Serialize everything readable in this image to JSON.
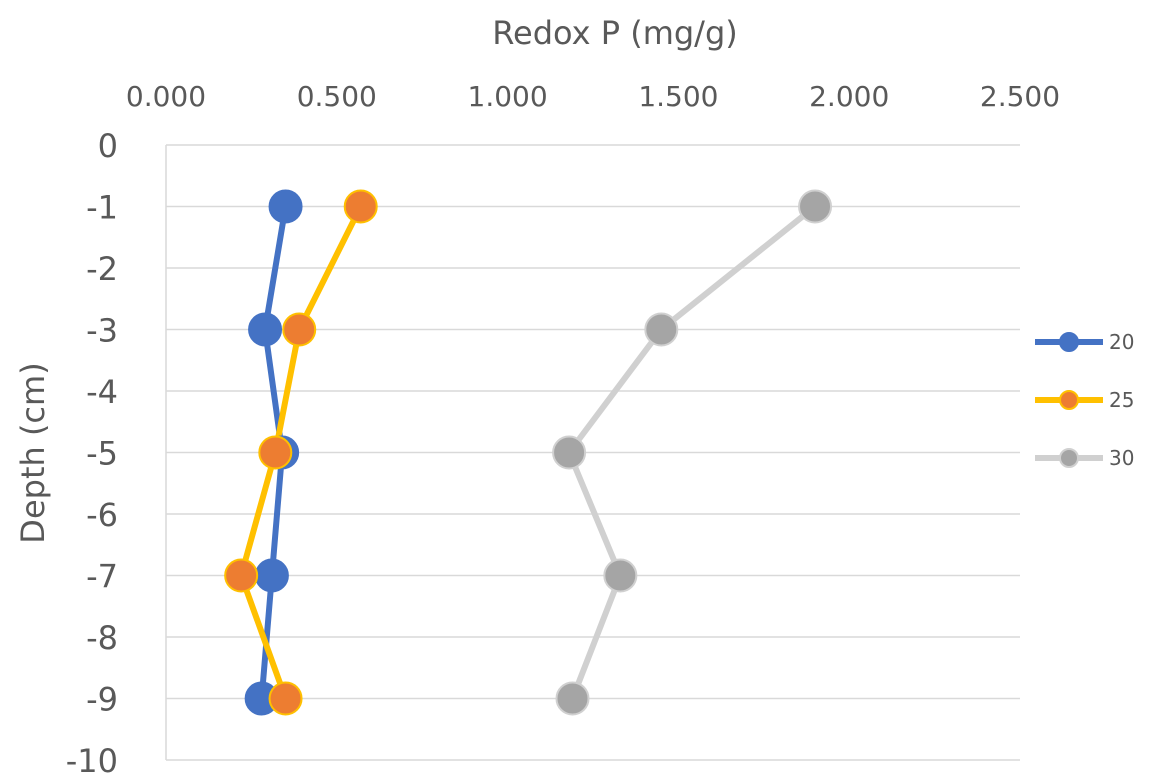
{
  "chart_data": {
    "type": "scatter",
    "title": "",
    "xlabel": "Redox P (mg/g)",
    "ylabel": "Depth (cm)",
    "xlim": [
      0,
      2.5
    ],
    "ylim": [
      -10,
      0
    ],
    "x_ticks": [
      "0.000",
      "0.500",
      "1.000",
      "1.500",
      "2.000",
      "2.500"
    ],
    "y_ticks": [
      "0",
      "-1",
      "-2",
      "-3",
      "-4",
      "-5",
      "-6",
      "-7",
      "-8",
      "-9",
      "-10"
    ],
    "x_axis_position": "top",
    "grid": "horizontal",
    "legend_position": "right",
    "series": [
      {
        "name": "20",
        "color": "#4472C4",
        "marker_color": "#4472C4",
        "line_color": "#4472C4",
        "x": [
          0.35,
          0.29,
          0.34,
          0.31,
          0.28
        ],
        "y": [
          -1,
          -3,
          -5,
          -7,
          -9
        ]
      },
      {
        "name": "25",
        "color": "#ED7D31",
        "marker_color": "#ED7D31",
        "line_color": "#FFC000",
        "x": [
          0.57,
          0.39,
          0.32,
          0.22,
          0.35
        ],
        "y": [
          -1,
          -3,
          -5,
          -7,
          -9
        ]
      },
      {
        "name": "30",
        "color": "#A5A5A5",
        "marker_color": "#A5A5A5",
        "line_color": "#D0D0D0",
        "x": [
          1.9,
          1.45,
          1.18,
          1.33,
          1.19
        ],
        "y": [
          -1,
          -3,
          -5,
          -7,
          -9
        ]
      }
    ]
  }
}
